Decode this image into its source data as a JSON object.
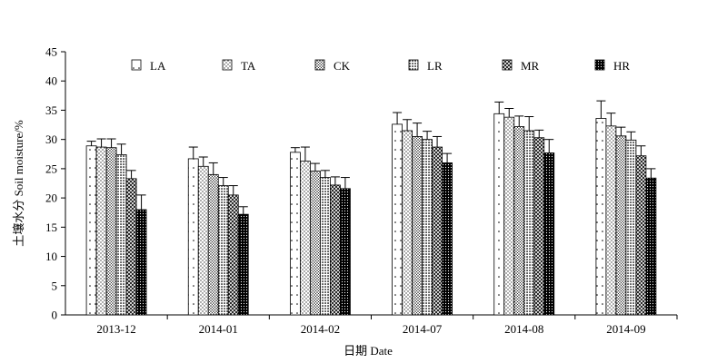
{
  "chart_data": {
    "type": "bar",
    "xlabel": "日期 Date",
    "ylabel": "土壤水分 Soil moisture/%",
    "ylim": [
      0,
      45
    ],
    "yticks": [
      0,
      5,
      10,
      15,
      20,
      25,
      30,
      35,
      40,
      45
    ],
    "grid": false,
    "legend_position": "top",
    "error_bars": true,
    "categories": [
      "2013-12",
      "2014-01",
      "2014-02",
      "2014-07",
      "2014-08",
      "2014-09"
    ],
    "series": [
      {
        "name": "LA",
        "pattern": "sparse-dots",
        "values": [
          28.9,
          26.7,
          27.8,
          32.6,
          34.4,
          33.6
        ],
        "errors": [
          0.8,
          2.0,
          0.8,
          2.0,
          2.0,
          3.0
        ]
      },
      {
        "name": "TA",
        "pattern": "dots",
        "values": [
          28.7,
          25.4,
          26.3,
          31.5,
          33.8,
          32.3
        ],
        "errors": [
          1.4,
          1.6,
          2.4,
          1.9,
          1.5,
          2.2
        ]
      },
      {
        "name": "CK",
        "pattern": "dense-dots",
        "values": [
          28.6,
          24.0,
          24.6,
          30.5,
          32.2,
          30.6
        ],
        "errors": [
          1.5,
          2.0,
          1.3,
          2.3,
          1.8,
          1.5
        ]
      },
      {
        "name": "LR",
        "pattern": "grid-dots",
        "values": [
          27.4,
          22.1,
          23.5,
          30.0,
          31.5,
          29.9
        ],
        "errors": [
          1.8,
          1.4,
          1.2,
          1.4,
          2.4,
          1.4
        ]
      },
      {
        "name": "MR",
        "pattern": "crosshatch",
        "values": [
          23.3,
          20.5,
          22.2,
          28.7,
          30.3,
          27.2
        ],
        "errors": [
          1.4,
          1.6,
          1.4,
          1.8,
          1.3,
          1.7
        ]
      },
      {
        "name": "HR",
        "pattern": "dark-dots",
        "values": [
          18.0,
          17.2,
          21.6,
          26.0,
          27.7,
          23.4
        ],
        "errors": [
          2.5,
          1.3,
          1.9,
          1.6,
          2.3,
          1.6
        ]
      }
    ]
  }
}
